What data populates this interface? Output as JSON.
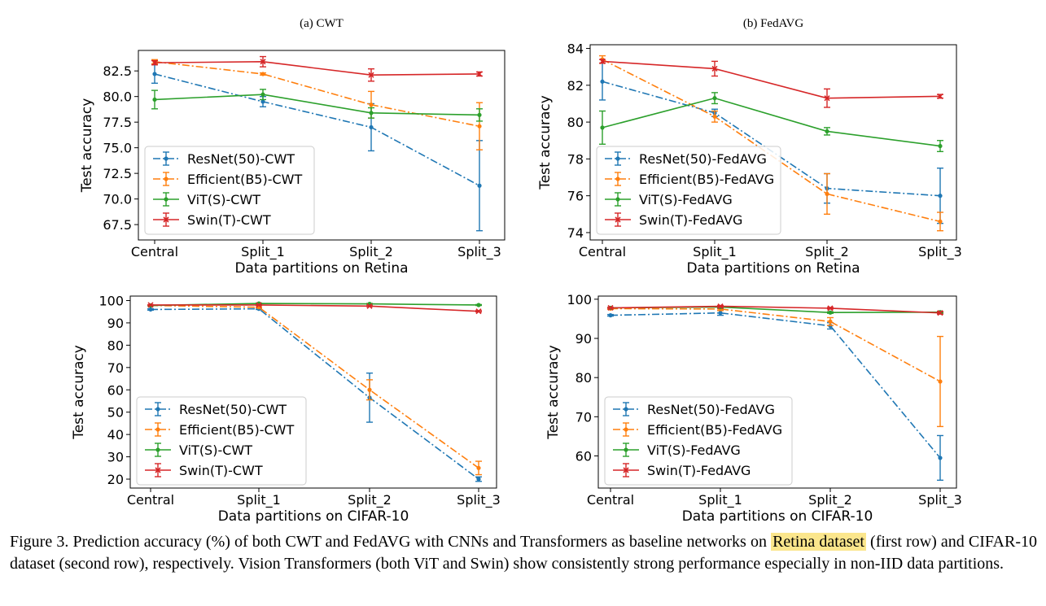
{
  "chart_data": [
    {
      "type": "line",
      "title": "(a) CWT",
      "xlabel": "Data partitions on Retina",
      "ylabel": "Test accuracy",
      "categories": [
        "Central",
        "Split_1",
        "Split_2",
        "Split_3"
      ],
      "ylim": [
        66.0,
        84.5
      ],
      "yticks": [
        67.5,
        70.0,
        72.5,
        75.0,
        77.5,
        80.0,
        82.5
      ],
      "ytick_labels": [
        "67.5",
        "70.0",
        "72.5",
        "75.0",
        "77.5",
        "80.0",
        "82.5"
      ],
      "legend_position": "lower-left",
      "series": [
        {
          "name": "ResNet(50)-CWT",
          "color": "#1f77b4",
          "dash": "dashdot",
          "marker": "dot",
          "values": [
            82.2,
            79.5,
            77.0,
            71.3
          ],
          "err": [
            0.9,
            0.5,
            2.3,
            4.4
          ]
        },
        {
          "name": "Efficient(B5)-CWT",
          "color": "#ff7f0e",
          "dash": "dashdot",
          "marker": "dot",
          "values": [
            83.4,
            82.2,
            79.2,
            77.1
          ],
          "err": [
            0.2,
            0.1,
            1.3,
            2.3
          ]
        },
        {
          "name": "ViT(S)-CWT",
          "color": "#2ca02c",
          "dash": "solid",
          "marker": "dot",
          "values": [
            79.7,
            80.2,
            78.4,
            78.2
          ],
          "err": [
            0.9,
            0.5,
            0.5,
            0.6
          ]
        },
        {
          "name": "Swin(T)-CWT",
          "color": "#d62728",
          "dash": "solid",
          "marker": "x",
          "values": [
            83.3,
            83.4,
            82.1,
            82.2
          ],
          "err": [
            0.2,
            0.5,
            0.6,
            0.2
          ]
        }
      ]
    },
    {
      "type": "line",
      "title": "(b) FedAVG",
      "xlabel": "Data partitions on Retina",
      "ylabel": "Test accuracy",
      "categories": [
        "Central",
        "Split_1",
        "Split_2",
        "Split_3"
      ],
      "ylim": [
        73.6,
        84.2
      ],
      "yticks": [
        74,
        76,
        78,
        80,
        82,
        84
      ],
      "ytick_labels": [
        "74",
        "76",
        "78",
        "80",
        "82",
        "84"
      ],
      "legend_position": "lower-left",
      "series": [
        {
          "name": "ResNet(50)-FedAVG",
          "color": "#1f77b4",
          "dash": "dashdot",
          "marker": "dot",
          "values": [
            82.2,
            80.5,
            76.4,
            76.0
          ],
          "err": [
            1.0,
            0.2,
            0.8,
            1.5
          ]
        },
        {
          "name": "Efficient(B5)-FedAVG",
          "color": "#ff7f0e",
          "dash": "dashdot",
          "marker": "dot",
          "values": [
            83.4,
            80.3,
            76.1,
            74.6
          ],
          "err": [
            0.2,
            0.3,
            1.1,
            0.5
          ]
        },
        {
          "name": "ViT(S)-FedAVG",
          "color": "#2ca02c",
          "dash": "solid",
          "marker": "dot",
          "values": [
            79.7,
            81.3,
            79.5,
            78.7
          ],
          "err": [
            0.9,
            0.3,
            0.2,
            0.3
          ]
        },
        {
          "name": "Swin(T)-FedAVG",
          "color": "#d62728",
          "dash": "solid",
          "marker": "x",
          "values": [
            83.3,
            82.9,
            81.3,
            81.4
          ],
          "err": [
            0.1,
            0.4,
            0.5,
            0.1
          ]
        }
      ]
    },
    {
      "type": "line",
      "title": "",
      "xlabel": "Data partitions on CIFAR-10",
      "ylabel": "Test accuracy",
      "categories": [
        "Central",
        "Split_1",
        "Split_2",
        "Split_3"
      ],
      "ylim": [
        16.0,
        102.0
      ],
      "yticks": [
        20,
        30,
        40,
        50,
        60,
        70,
        80,
        90,
        100
      ],
      "ytick_labels": [
        "20",
        "30",
        "40",
        "50",
        "60",
        "70",
        "80",
        "90",
        "100"
      ],
      "legend_position": "lower-left",
      "series": [
        {
          "name": "ResNet(50)-CWT",
          "color": "#1f77b4",
          "dash": "dashdot",
          "marker": "dot",
          "values": [
            96.0,
            96.3,
            56.5,
            20.0
          ],
          "err": [
            0.3,
            0.3,
            11.0,
            1.0
          ]
        },
        {
          "name": "Efficient(B5)-CWT",
          "color": "#ff7f0e",
          "dash": "dashdot",
          "marker": "dot",
          "values": [
            97.8,
            97.0,
            60.0,
            25.0
          ],
          "err": [
            0.2,
            0.3,
            4.5,
            3.0
          ]
        },
        {
          "name": "ViT(S)-CWT",
          "color": "#2ca02c",
          "dash": "solid",
          "marker": "dot",
          "values": [
            97.8,
            98.7,
            98.5,
            98.0
          ],
          "err": [
            0.1,
            0.2,
            0.2,
            0.2
          ]
        },
        {
          "name": "Swin(T)-CWT",
          "color": "#d62728",
          "dash": "solid",
          "marker": "x",
          "values": [
            98.0,
            98.0,
            97.5,
            95.2
          ],
          "err": [
            0.1,
            0.1,
            0.2,
            0.3
          ]
        }
      ]
    },
    {
      "type": "line",
      "title": "",
      "xlabel": "Data partitions on CIFAR-10",
      "ylabel": "Test accuracy",
      "categories": [
        "Central",
        "Split_1",
        "Split_2",
        "Split_3"
      ],
      "ylim": [
        51.8,
        100.8
      ],
      "yticks": [
        60,
        70,
        80,
        90,
        100
      ],
      "ytick_labels": [
        "60",
        "70",
        "80",
        "90",
        "100"
      ],
      "legend_position": "lower-left",
      "series": [
        {
          "name": "ResNet(50)-FedAVG",
          "color": "#1f77b4",
          "dash": "dashdot",
          "marker": "dot",
          "values": [
            95.9,
            96.5,
            93.2,
            59.5
          ],
          "err": [
            0.2,
            0.6,
            0.8,
            5.7
          ]
        },
        {
          "name": "Efficient(B5)-FedAVG",
          "color": "#ff7f0e",
          "dash": "dashdot",
          "marker": "dot",
          "values": [
            97.6,
            97.5,
            94.3,
            79.0
          ],
          "err": [
            0.2,
            0.4,
            1.0,
            11.5
          ]
        },
        {
          "name": "ViT(S)-FedAVG",
          "color": "#2ca02c",
          "dash": "solid",
          "marker": "dot",
          "values": [
            97.8,
            98.0,
            96.6,
            96.7
          ],
          "err": [
            0.1,
            0.3,
            0.2,
            0.2
          ]
        },
        {
          "name": "Swin(T)-FedAVG",
          "color": "#d62728",
          "dash": "solid",
          "marker": "x",
          "values": [
            97.8,
            98.2,
            97.7,
            96.5
          ],
          "err": [
            0.1,
            0.2,
            0.2,
            0.3
          ]
        }
      ]
    }
  ],
  "caption": {
    "part1": "Figure 3.  Prediction accuracy (%) of both CWT and FedAVG with CNNs and Transformers as baseline networks on ",
    "highlight": "Retina dataset",
    "part2": " (first row) and CIFAR-10 dataset (second row), respectively. Vision Transformers (both ViT and Swin) show consistently strong performance especially in non-IID data partitions."
  }
}
